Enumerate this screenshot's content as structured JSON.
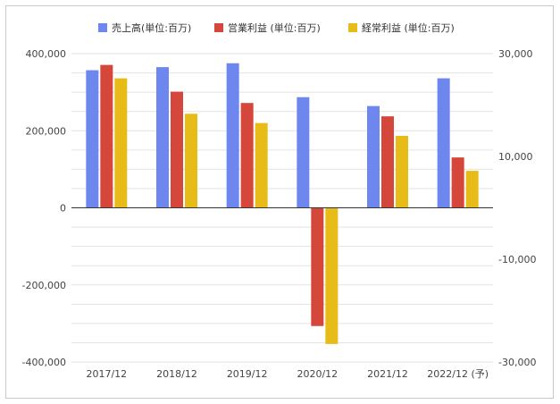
{
  "chart_data": {
    "type": "bar",
    "categories": [
      "2017/12",
      "2018/12",
      "2019/12",
      "2020/12",
      "2021/12",
      "2022/12 (予)"
    ],
    "series": [
      {
        "name": "売上高(単位:百万)",
        "axis": "left",
        "color": "#6d87ef",
        "values": [
          357000,
          365000,
          375000,
          287000,
          264000,
          336000
        ]
      },
      {
        "name": "営業利益 (単位:百万)",
        "axis": "right",
        "color": "#d4473a",
        "values": [
          27800,
          22600,
          20400,
          -23000,
          17800,
          9800
        ]
      },
      {
        "name": "経常利益 (単位:百万)",
        "axis": "right",
        "color": "#e8bc18",
        "values": [
          25200,
          18300,
          16500,
          -26500,
          14000,
          7200
        ]
      }
    ],
    "left_axis": {
      "range": [
        -400000,
        400000
      ],
      "ticks": [
        "400,000",
        "200,000",
        "0",
        "-200,000",
        "-400,000"
      ],
      "tick_values": [
        400000,
        200000,
        0,
        -200000,
        -400000
      ]
    },
    "right_axis": {
      "range": [
        -30000,
        30000
      ],
      "ticks": [
        "30,000",
        "10,000",
        "-10,000",
        "-30,000"
      ],
      "tick_values": [
        30000,
        10000,
        -10000,
        -30000
      ]
    },
    "grid": true,
    "legend_position": "top"
  }
}
